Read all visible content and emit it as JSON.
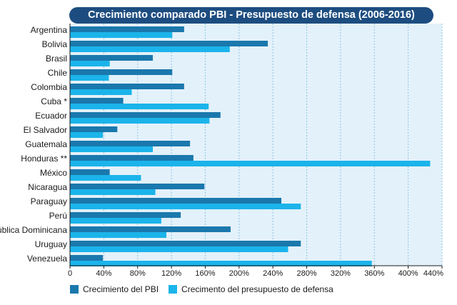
{
  "chart_data": {
    "type": "bar",
    "orientation": "horizontal",
    "title": "Crecimiento comparado PBI - Presupuesto de defensa (2006-2016)",
    "categories": [
      "Argentina",
      "Bolivia",
      "Brasil",
      "Chile",
      "Colombia",
      "Cuba *",
      "Ecuador",
      "El Salvador",
      "Guatemala",
      "Honduras **",
      "México",
      "Nicaragua",
      "Paraguay",
      "Perú",
      "República Dominicana",
      "Uruguay",
      "Venezuela"
    ],
    "series": [
      {
        "name": "Crecimiento del PBI",
        "color": "#1a78ad",
        "values": [
          135,
          234,
          98,
          121,
          135,
          63,
          178,
          56,
          142,
          146,
          47,
          159,
          250,
          131,
          190,
          273,
          39
        ]
      },
      {
        "name": "Crecimento del presupuesto de defensa",
        "color": "#1bb4ea",
        "values": [
          121,
          189,
          47,
          46,
          73,
          164,
          165,
          39,
          98,
          426,
          84,
          101,
          273,
          108,
          114,
          258,
          357
        ]
      }
    ],
    "xlim": [
      0,
      440
    ],
    "xticks": [
      0,
      40,
      80,
      120,
      160,
      200,
      240,
      280,
      320,
      360,
      400,
      440
    ],
    "xtick_labels": [
      "0",
      "40%",
      "80%",
      "120%",
      "160%",
      "200%",
      "240%",
      "280%",
      "320%",
      "360%",
      "400%",
      "440%"
    ],
    "grid": true,
    "legend_position": "bottom-left"
  }
}
